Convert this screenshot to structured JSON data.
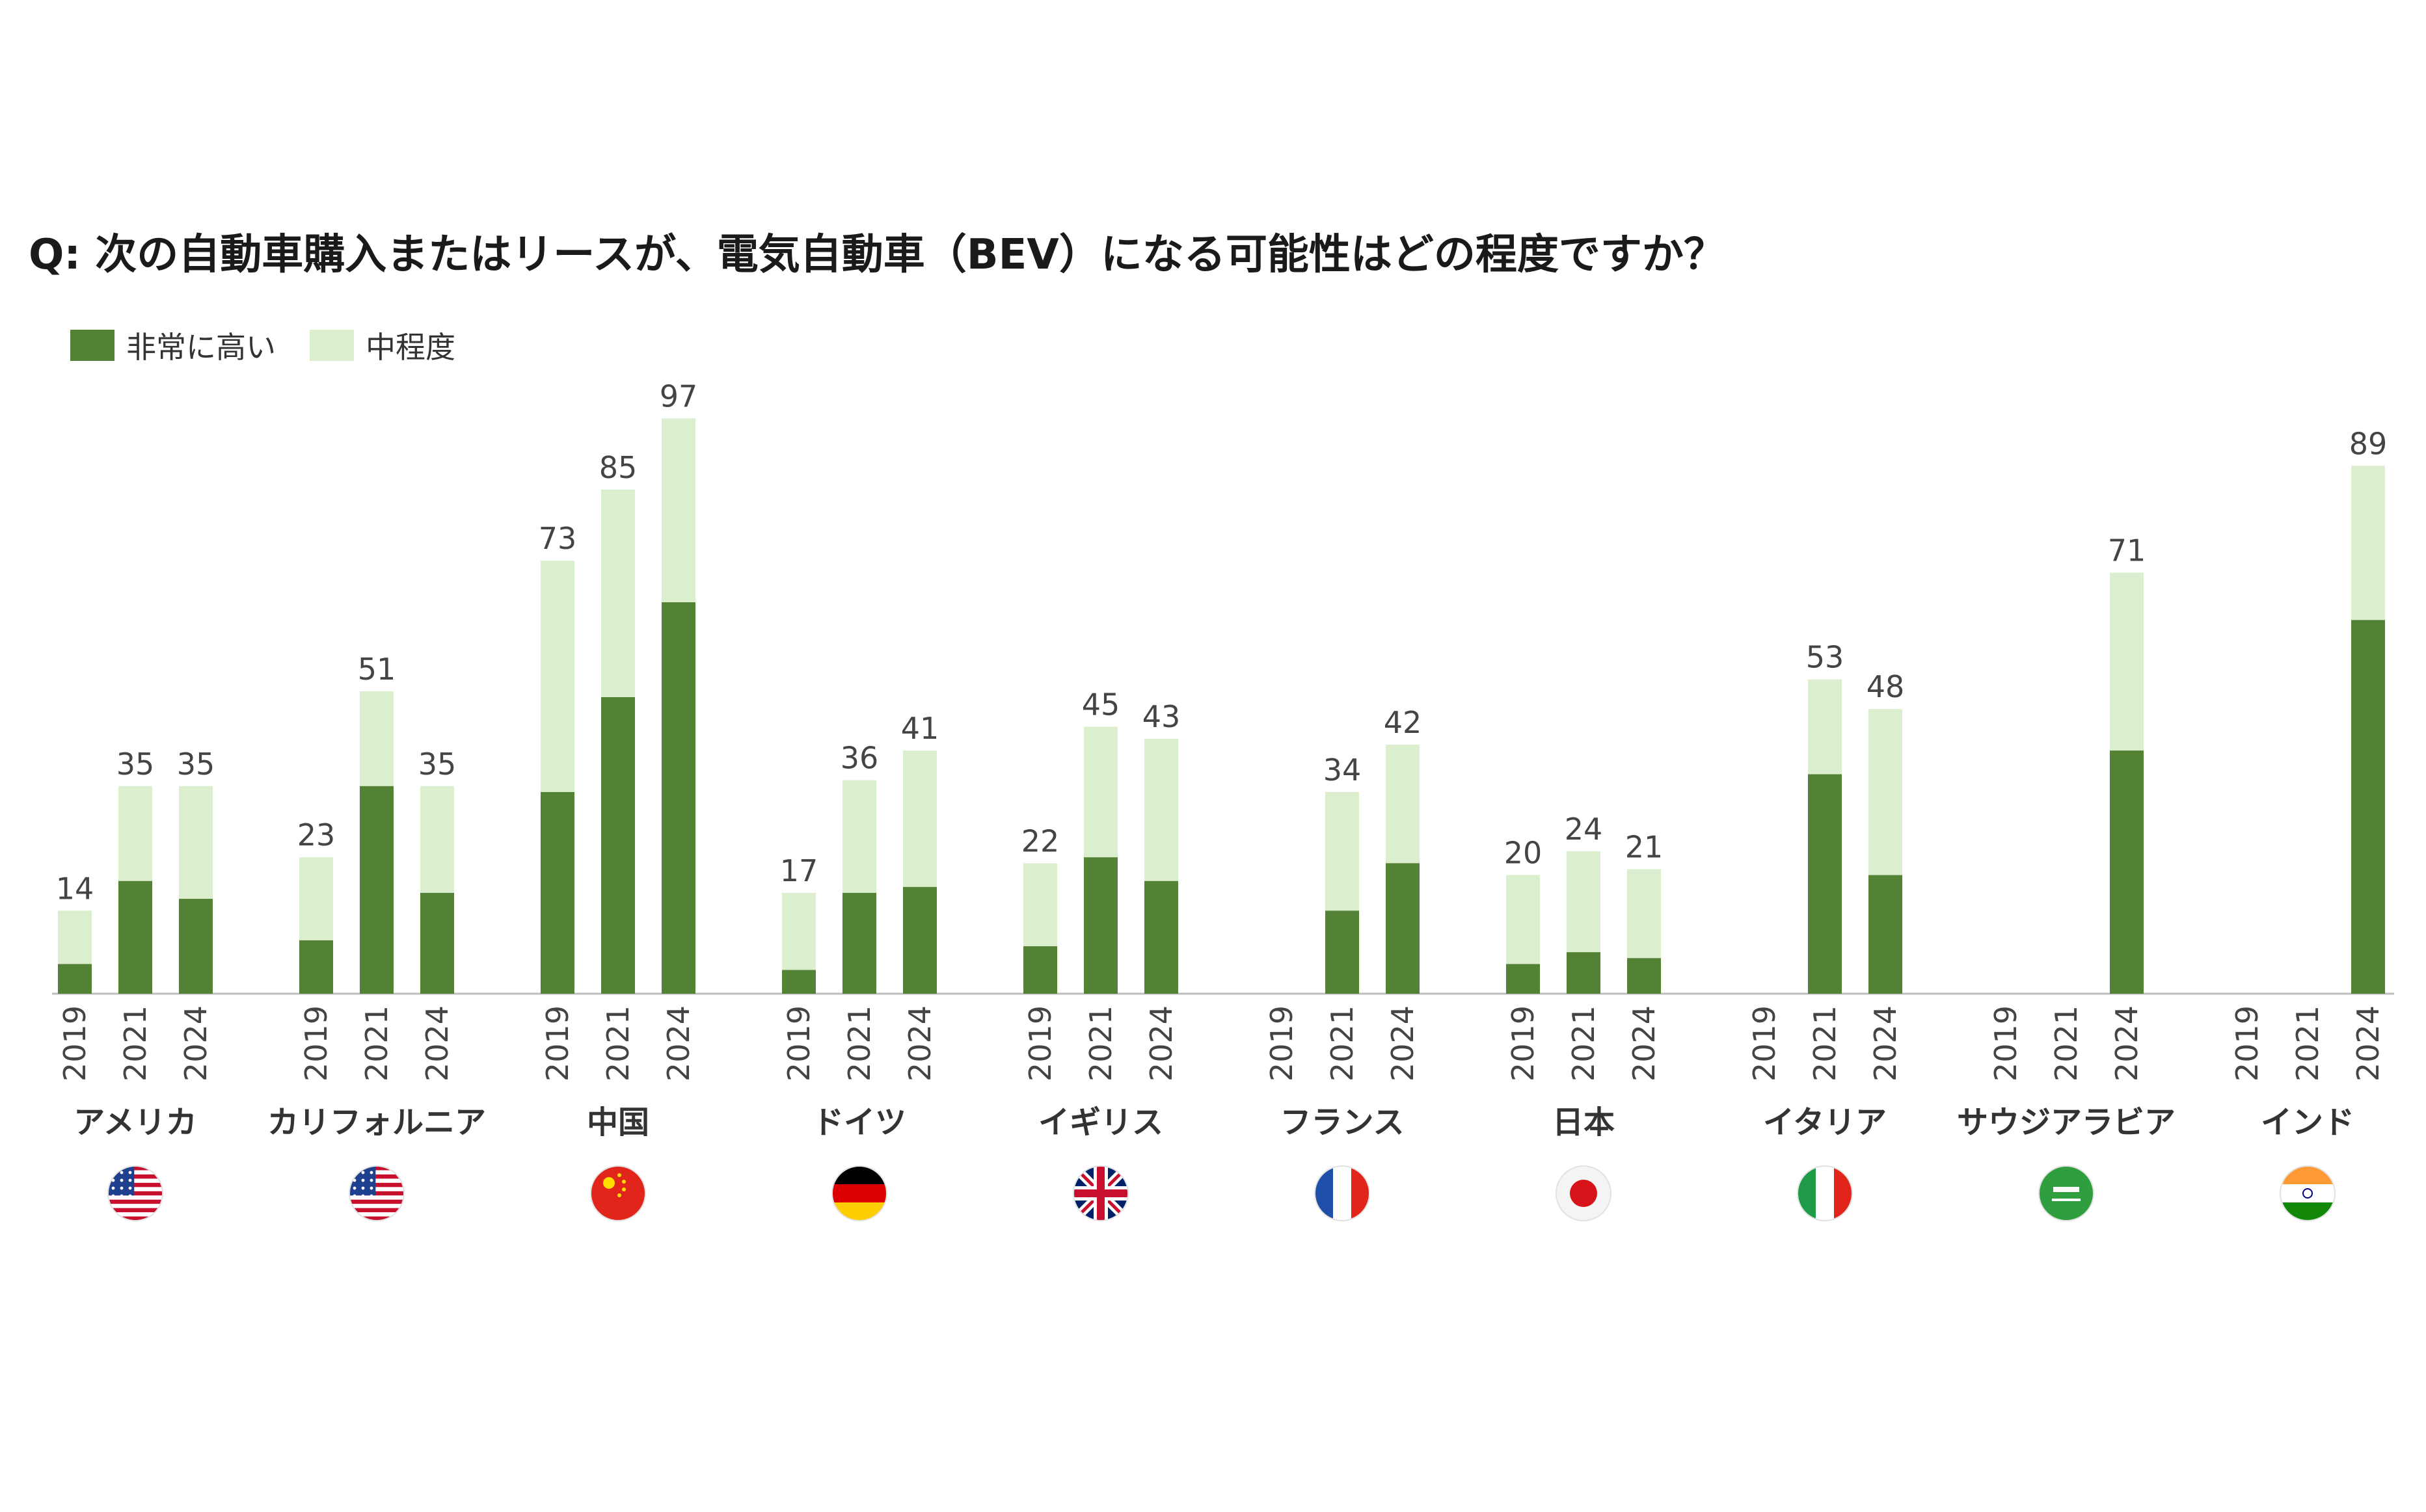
{
  "title": "Q: 次の自動車購入またはリースが、電気自動車（BEV）になる可能性はどの程度ですか？",
  "legend": {
    "high_label": "非常に高い",
    "medium_label": "中程度"
  },
  "colors": {
    "high": "#548235",
    "medium": "#dbefcf",
    "baseline": "#bfbfbf"
  },
  "chart_data": {
    "type": "bar",
    "stacked": true,
    "ylim": [
      0,
      100
    ],
    "grid": false,
    "legend_position": "top-left",
    "series_names": [
      "非常に高い",
      "中程度"
    ],
    "groups": [
      {
        "country": "アメリカ",
        "flag": "usa-flag-icon",
        "years": [
          "2019",
          "2021",
          "2024"
        ],
        "high": [
          5,
          19,
          16
        ],
        "total": [
          14,
          35,
          35
        ],
        "total_labels": [
          "14",
          "35",
          "35"
        ]
      },
      {
        "country": "カリフォルニア",
        "flag": "usa-flag-icon",
        "years": [
          "2019",
          "2021",
          "2024"
        ],
        "high": [
          9,
          35,
          17
        ],
        "total": [
          23,
          51,
          35
        ],
        "total_labels": [
          "23",
          "51",
          "35"
        ]
      },
      {
        "country": "中国",
        "flag": "china-flag-icon",
        "years": [
          "2019",
          "2021",
          "2024"
        ],
        "high": [
          34,
          50,
          66
        ],
        "total": [
          73,
          85,
          97
        ],
        "total_labels": [
          "73",
          "85",
          "97"
        ]
      },
      {
        "country": "ドイツ",
        "flag": "germany-flag-icon",
        "years": [
          "2019",
          "2021",
          "2024"
        ],
        "high": [
          4,
          17,
          18
        ],
        "total": [
          17,
          36,
          41
        ],
        "total_labels": [
          "17",
          "36",
          "41"
        ]
      },
      {
        "country": "イギリス",
        "flag": "uk-flag-icon",
        "years": [
          "2019",
          "2021",
          "2024"
        ],
        "high": [
          8,
          23,
          19
        ],
        "total": [
          22,
          45,
          43
        ],
        "total_labels": [
          "22",
          "45",
          "43"
        ]
      },
      {
        "country": "フランス",
        "flag": "france-flag-icon",
        "years": [
          "2019",
          "2021",
          "2024"
        ],
        "high": [
          null,
          14,
          22
        ],
        "total": [
          null,
          34,
          42
        ],
        "total_labels": [
          "",
          "34",
          "42"
        ]
      },
      {
        "country": "日本",
        "flag": "japan-flag-icon",
        "years": [
          "2019",
          "2021",
          "2024"
        ],
        "high": [
          5,
          7,
          6
        ],
        "total": [
          20,
          24,
          21
        ],
        "total_labels": [
          "20",
          "24",
          "21"
        ]
      },
      {
        "country": "イタリア",
        "flag": "italy-flag-icon",
        "years": [
          "2019",
          "2021",
          "2024"
        ],
        "high": [
          null,
          37,
          20
        ],
        "total": [
          null,
          53,
          48
        ],
        "total_labels": [
          "",
          "53",
          "48"
        ]
      },
      {
        "country": "サウジアラビア",
        "flag": "saudi-flag-icon",
        "years": [
          "2019",
          "2021",
          "2024"
        ],
        "high": [
          null,
          null,
          41
        ],
        "total": [
          null,
          null,
          71
        ],
        "total_labels": [
          "",
          "",
          "71"
        ]
      },
      {
        "country": "インド",
        "flag": "india-flag-icon",
        "years": [
          "2019",
          "2021",
          "2024"
        ],
        "high": [
          null,
          null,
          63
        ],
        "total": [
          null,
          null,
          89
        ],
        "total_labels": [
          "",
          "",
          "89"
        ]
      }
    ]
  }
}
